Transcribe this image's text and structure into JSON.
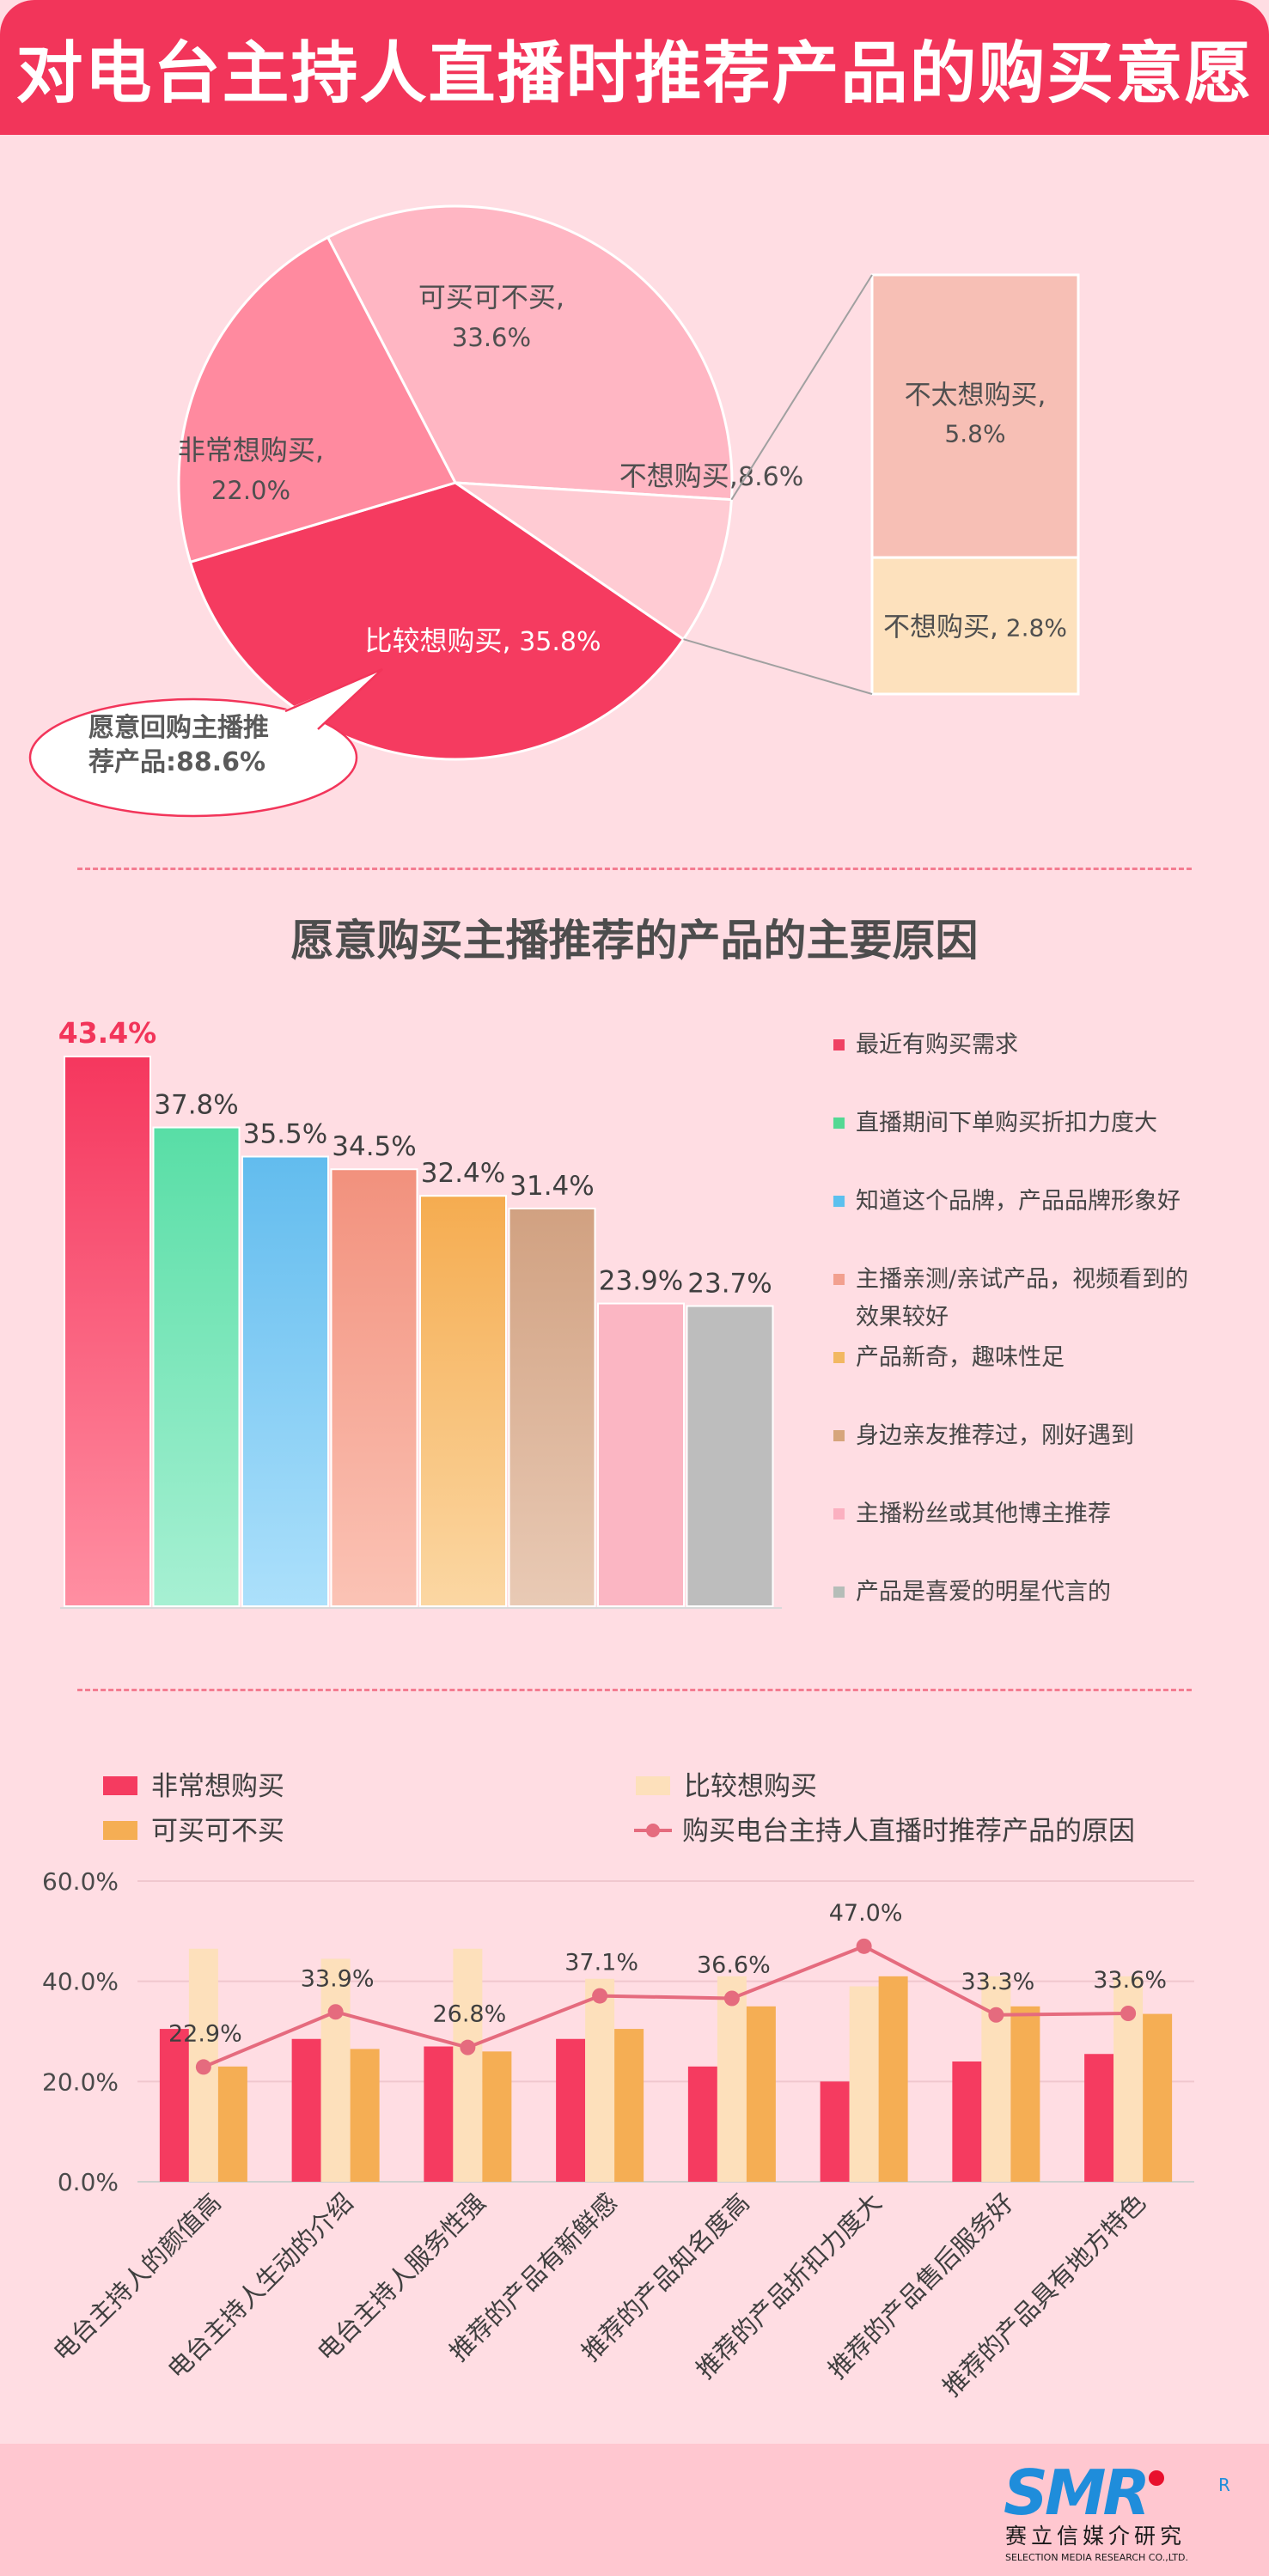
{
  "page": {
    "title": "对电台主持人直播时推荐产品的购买意愿",
    "callout": [
      "愿意回购主播推",
      "荐产品:88.6%"
    ]
  },
  "colors": {
    "title_bg": "#f2355a",
    "page_bg": "#ffdde3",
    "footer_bg": "#ffc7d0",
    "accent_red": "#f53b60",
    "beige": "#fbdcb4",
    "orange": "#f5ae54",
    "line": "#e56b7e"
  },
  "logo": {
    "brand": "SMR",
    "cn": "赛立信媒介研究",
    "en": "SELECTION MEDIA RESEARCH CO.,LTD.",
    "reg": "R"
  },
  "chart_data": [
    {
      "type": "pie",
      "title": "",
      "slices": [
        {
          "label": "可买可不买,",
          "value": 33.6,
          "text": "33.6%",
          "color": "#ffb6c3"
        },
        {
          "label": "不想购买,",
          "value": 8.6,
          "text": "8.6%",
          "color": "#ffcbd3"
        },
        {
          "label": "比较想购买,",
          "value": 35.8,
          "text": "35.8%",
          "color": "#f53b60"
        },
        {
          "label": "非常想购买,",
          "value": 22.0,
          "text": "22.0%",
          "color": "#ff8a9f"
        }
      ],
      "breakdown": {
        "of": "不想购买",
        "items": [
          {
            "label": "不太想购买,",
            "value": 5.8,
            "text": "5.8%",
            "color": "#f7bfb5"
          },
          {
            "label": "不想购买,",
            "value": 2.8,
            "text": "2.8%",
            "color": "#fde1bd"
          }
        ]
      }
    },
    {
      "type": "bar",
      "title": "愿意购买主播推荐的产品的主要原因",
      "ylim": [
        0,
        50
      ],
      "categories": [
        "最近有购买需求",
        "直播期间下单购买折扣力度大",
        "知道这个品牌，产品品牌形象好",
        "主播亲测/亲试产品，视频看到的效果较好",
        "产品新奇，趣味性足",
        "身边亲友推荐过，刚好遇到",
        "主播粉丝或其他博主推荐",
        "产品是喜爱的明星代言的"
      ],
      "legend_lines": [
        [
          "最近有购买需求"
        ],
        [
          "直播期间下单购买折扣力度大"
        ],
        [
          "知道这个品牌，产品品牌形象好"
        ],
        [
          "主播亲测/亲试产品，视频看到的",
          "效果较好"
        ],
        [
          "产品新奇，趣味性足"
        ],
        [
          "身边亲友推荐过，刚好遇到"
        ],
        [
          "主播粉丝或其他博主推荐"
        ],
        [
          "产品是喜爱的明星代言的"
        ]
      ],
      "values": [
        43.4,
        37.8,
        35.5,
        34.5,
        32.4,
        31.4,
        23.9,
        23.7
      ],
      "labels": [
        "43.4%",
        "37.8%",
        "35.5%",
        "34.5%",
        "32.4%",
        "31.4%",
        "23.9%",
        "23.7%"
      ],
      "colors_top": [
        "#f5375e",
        "#58dea6",
        "#62bcee",
        "#f2917d",
        "#f5ac50",
        "#d1a181",
        "#fbb6c3",
        "#bdbdbd"
      ],
      "colors_bottom": [
        "#ff8fa2",
        "#a7f0d3",
        "#ace0fb",
        "#fbc3b5",
        "#fbd7a3",
        "#e9cab5",
        "#fbb6c3",
        "#bdbdbd"
      ],
      "legend_colors": [
        "#ef4062",
        "#53d893",
        "#5cc0ee",
        "#f2a08f",
        "#f2b862",
        "#d6a57c",
        "#fbb0c0",
        "#b5bdb8"
      ]
    },
    {
      "type": "bar",
      "title": "",
      "ylim": [
        0,
        60
      ],
      "yticks": [
        "0.0%",
        "20.0%",
        "40.0%",
        "60.0%"
      ],
      "categories": [
        "电台主持人的颜值高",
        "电台主持人生动的介绍",
        "电台主持人服务性强",
        "推荐的产品有新鲜感",
        "推荐的产品知名度高",
        "推荐的产品折扣力度大",
        "推荐的产品售后服务好",
        "推荐的产品具有地方特色"
      ],
      "series": [
        {
          "name": "非常想购买",
          "color": "#f53b60",
          "values": [
            30.5,
            28.5,
            27.0,
            28.5,
            23.0,
            20.0,
            24.0,
            25.5
          ]
        },
        {
          "name": "比较想购买",
          "color": "#fde0bb",
          "values": [
            46.5,
            44.5,
            46.5,
            40.5,
            41.0,
            39.0,
            41.0,
            41.0
          ]
        },
        {
          "name": "可买可不买",
          "color": "#f5ae54",
          "values": [
            23.0,
            26.5,
            26.0,
            30.5,
            35.0,
            41.0,
            35.0,
            33.5
          ]
        }
      ],
      "line": {
        "name": "购买电台主持人直播时推荐产品的原因",
        "color": "#e56b7e",
        "values": [
          22.9,
          33.9,
          26.8,
          37.1,
          36.6,
          47.0,
          33.3,
          33.6
        ],
        "labels": [
          "22.9%",
          "33.9%",
          "26.8%",
          "37.1%",
          "36.6%",
          "47.0%",
          "33.3%",
          "33.6%"
        ]
      }
    }
  ]
}
